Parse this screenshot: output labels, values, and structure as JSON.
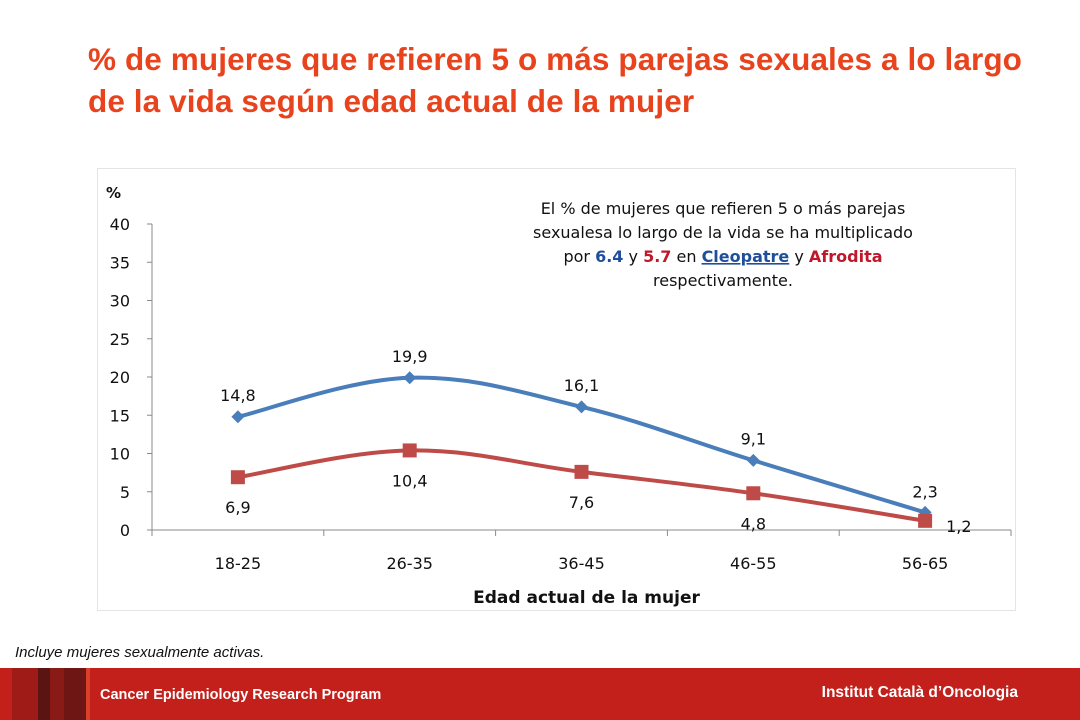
{
  "title": "% de mujeres que refieren 5 o más parejas sexuales a lo largo de la vida según edad actual de la mujer",
  "chart_data": {
    "type": "line",
    "categories": [
      "18-25",
      "26-35",
      "36-45",
      "46-55",
      "56-65"
    ],
    "series": [
      {
        "values": [
          14.8,
          19.9,
          16.1,
          9.1,
          2.3
        ],
        "labels": [
          "14,8",
          "19,9",
          "16,1",
          "9,1",
          "2,3"
        ],
        "color": "#4a7ebb",
        "marker": "diamond"
      },
      {
        "values": [
          6.9,
          10.4,
          7.6,
          4.8,
          1.2
        ],
        "labels": [
          "6,9",
          "10,4",
          "7,6",
          "4,8",
          "1,2"
        ],
        "color": "#be4b48",
        "marker": "square"
      }
    ],
    "xlabel": "Edad actual de la mujer",
    "ylabel": "%",
    "ylim": [
      0,
      40
    ],
    "yticks": [
      "0",
      "5",
      "10",
      "15",
      "20",
      "25",
      "30",
      "35",
      "40"
    ],
    "grid": false,
    "legend": "none",
    "annotation": {
      "line1": "El % de mujeres que refieren 5 o más parejas",
      "line2": "sexualesa lo largo de la vida se ha multiplicado",
      "line3_prefix": "por ",
      "value_blue": "6.4",
      "connector_y": " y ",
      "value_red": "5.7",
      "connector_en": " en ",
      "name_blue": "Cleopatre",
      "connector_y2": " y ",
      "name_red": "Afrodita",
      "line4": "respectivamente.",
      "blue": "#1f4e9a",
      "red": "#c0172b"
    }
  },
  "note": "Incluye mujeres sexualmente activas.",
  "footer": {
    "program": "Cancer Epidemiology   Research Program",
    "institution": "Institut Català d’Oncologia",
    "color": "#c3201b"
  }
}
